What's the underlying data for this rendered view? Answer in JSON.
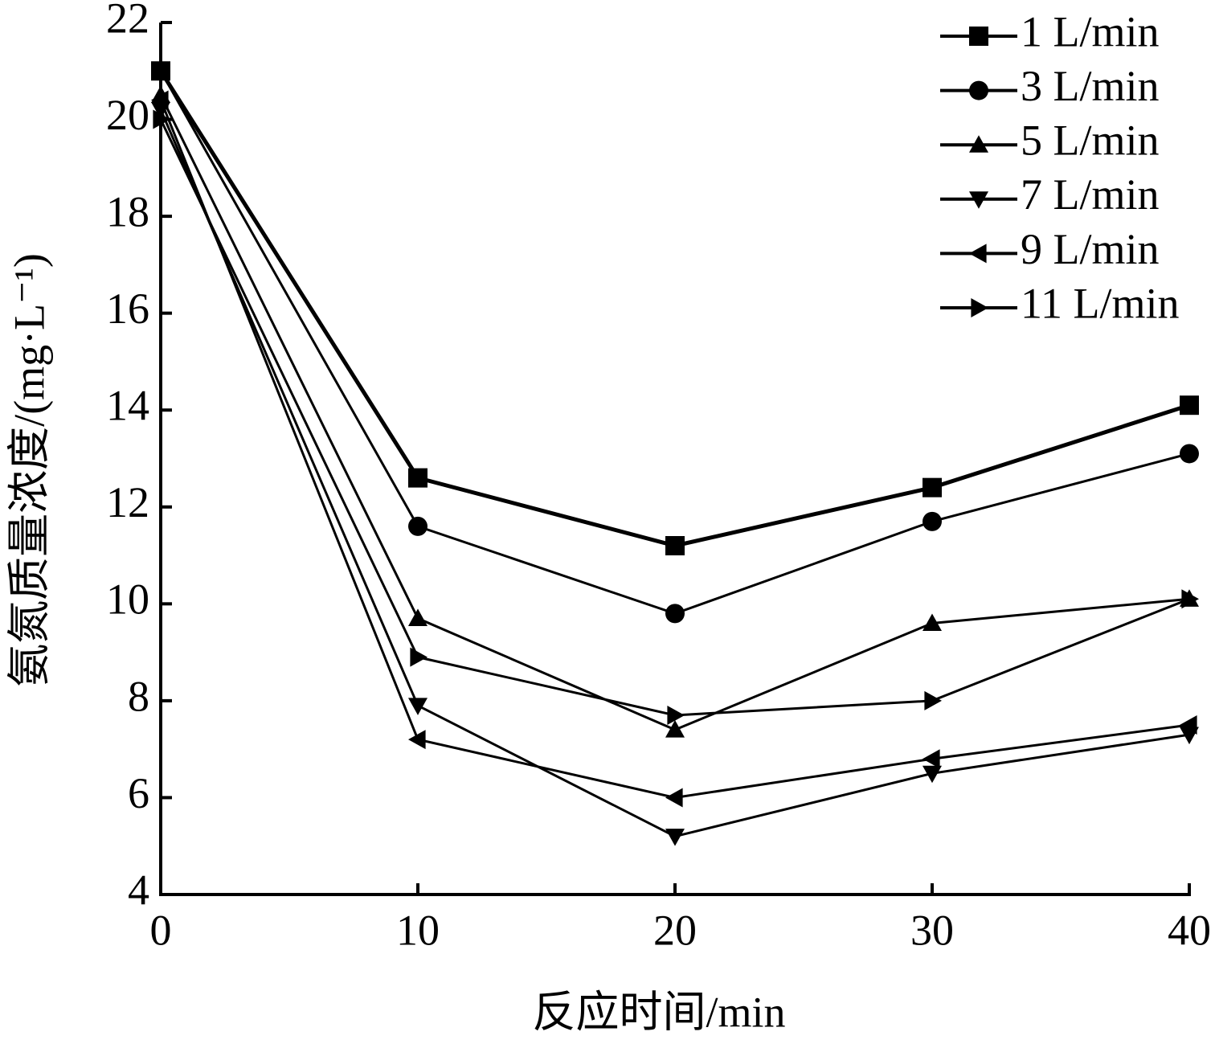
{
  "chart_data": {
    "type": "line",
    "x_label": "反应时间/min",
    "y_label": "氨氮质量浓度/(mg·L⁻¹)",
    "x": [
      0,
      10,
      20,
      30,
      40
    ],
    "xlim": [
      0,
      40
    ],
    "xticks": [
      0,
      10,
      20,
      30,
      40
    ],
    "ylim": [
      4,
      22
    ],
    "yticks": [
      4,
      6,
      8,
      10,
      12,
      14,
      16,
      18,
      20,
      22
    ],
    "legend": "upper-right",
    "series": [
      {
        "name": "1 L/min",
        "color": "#000000",
        "marker": "square",
        "values": [
          21.0,
          12.6,
          11.2,
          12.4,
          14.1
        ]
      },
      {
        "name": "3 L/min",
        "color": "#000000",
        "marker": "circle",
        "values": [
          21.0,
          11.6,
          9.8,
          11.7,
          13.1
        ]
      },
      {
        "name": "5 L/min",
        "color": "#000000",
        "marker": "triangle-up",
        "values": [
          20.5,
          9.7,
          7.4,
          9.6,
          10.1
        ]
      },
      {
        "name": "7 L/min",
        "color": "#000000",
        "marker": "triangle-down",
        "values": [
          20.2,
          7.9,
          5.2,
          6.5,
          7.3
        ]
      },
      {
        "name": "9 L/min",
        "color": "#000000",
        "marker": "triangle-left",
        "values": [
          20.4,
          7.2,
          6.0,
          6.8,
          7.5
        ]
      },
      {
        "name": "11 L/min",
        "color": "#000000",
        "marker": "triangle-right",
        "values": [
          20.0,
          8.9,
          7.7,
          8.0,
          10.1
        ]
      }
    ]
  }
}
